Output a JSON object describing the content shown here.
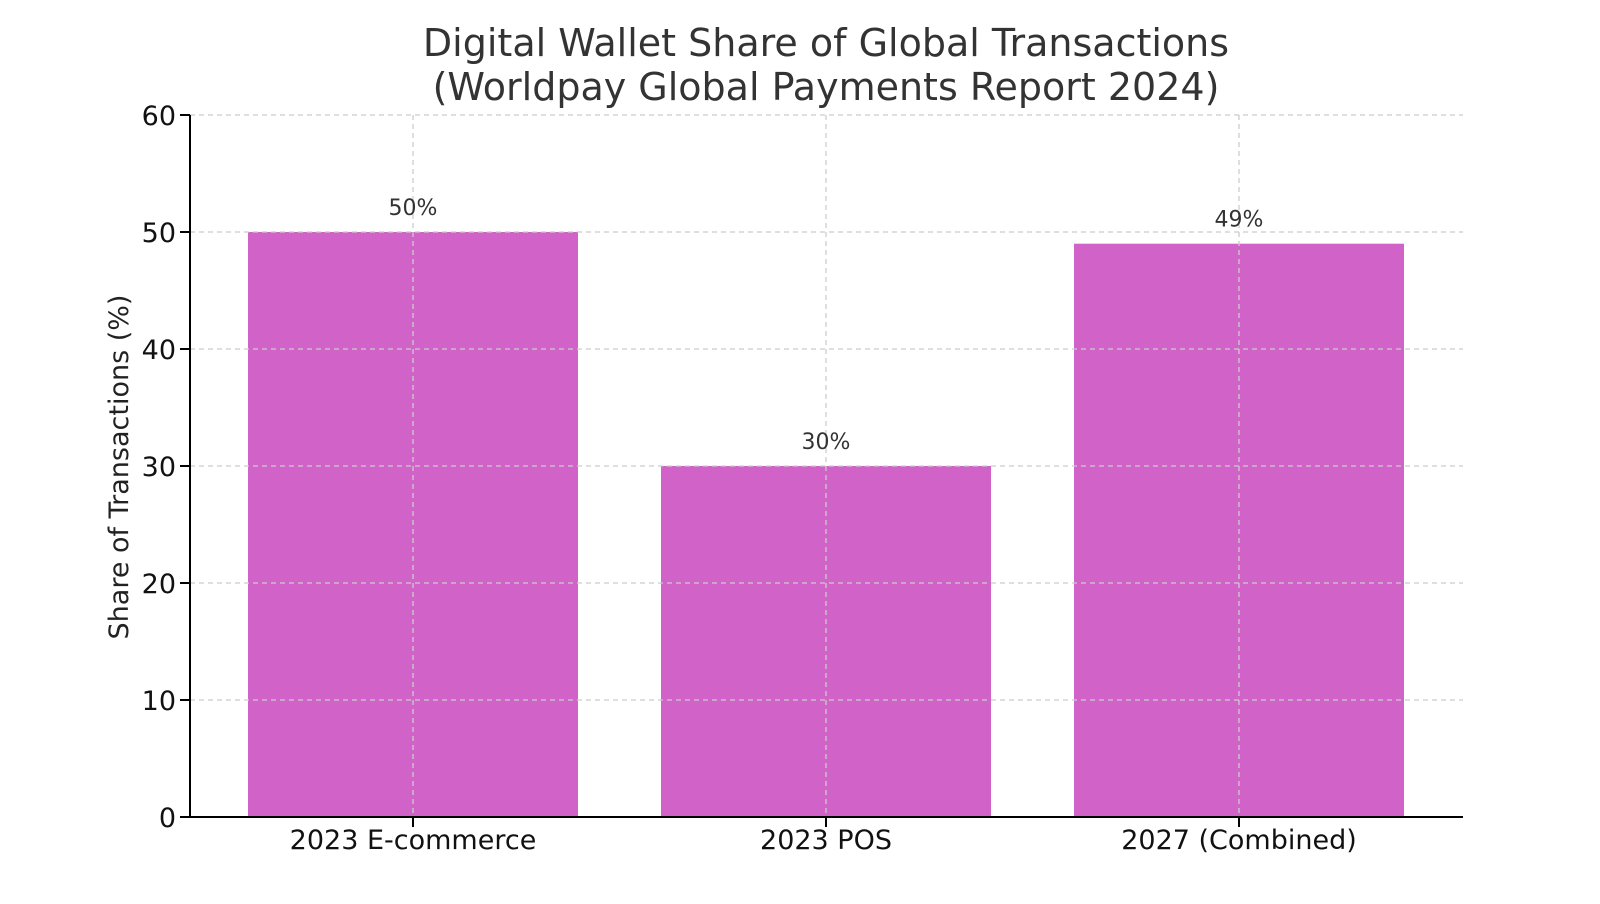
{
  "chart_data": {
    "type": "bar",
    "title": "Digital Wallet Share of Global Transactions",
    "subtitle": "(Worldpay Global Payments Report 2024)",
    "xlabel": "",
    "ylabel": "Share of Transactions (%)",
    "categories": [
      "2023 E-commerce",
      "2023 POS",
      "2027 (Combined)"
    ],
    "values": [
      50,
      30,
      49
    ],
    "data_labels": [
      "50%",
      "30%",
      "49%"
    ],
    "ylim": [
      0,
      60
    ],
    "yticks": [
      "0",
      "10",
      "20",
      "30",
      "40",
      "50",
      "60"
    ],
    "grid": true,
    "bar_color": "#d062c8"
  }
}
